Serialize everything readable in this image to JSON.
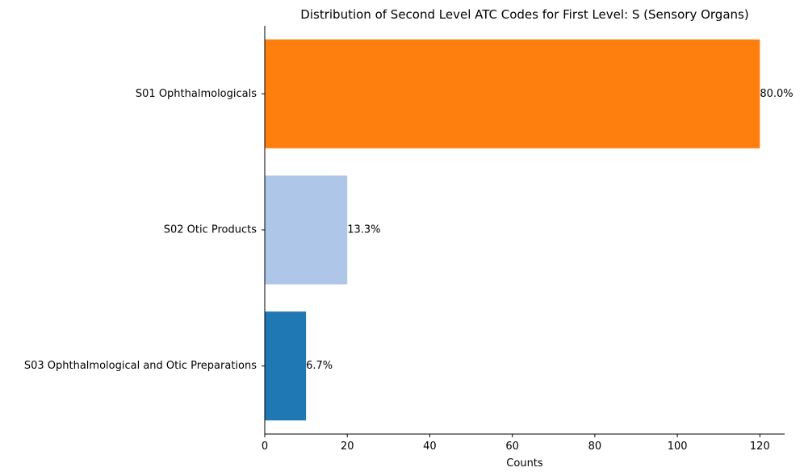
{
  "chart_data": {
    "type": "bar",
    "orientation": "horizontal",
    "title": "Distribution of Second Level ATC Codes for First Level: S (Sensory Organs)",
    "xlabel": "Counts",
    "ylabel": "",
    "xlim": [
      0,
      126
    ],
    "xticks": [
      0,
      20,
      40,
      60,
      80,
      100,
      120
    ],
    "grid": false,
    "categories": [
      "S01 Ophthalmologicals",
      "S02 Otic Products",
      "S03 Ophthalmological and Otic Preparations"
    ],
    "values": [
      120,
      20,
      10
    ],
    "data_labels": [
      "80.0%",
      "13.3%",
      "6.7%"
    ],
    "colors": [
      "#ff7f0e",
      "#aec7e8",
      "#1f77b4"
    ]
  }
}
